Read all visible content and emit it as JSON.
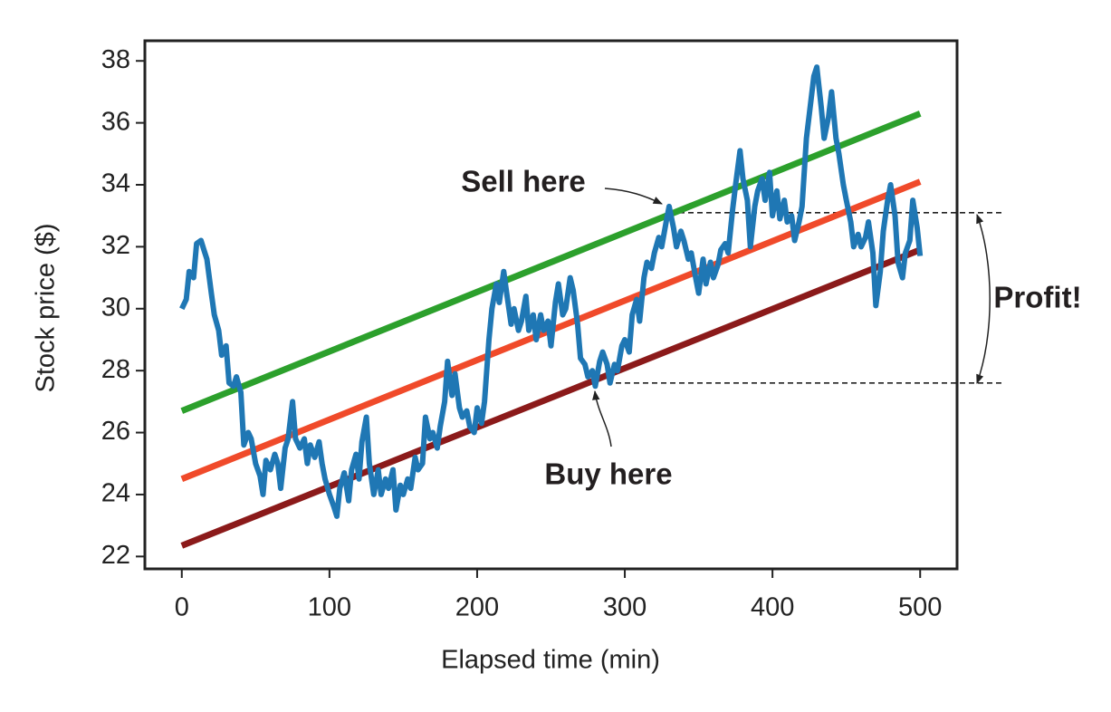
{
  "chart_data": {
    "type": "line",
    "xlabel": "Elapsed time (min)",
    "ylabel": "Stock price ($)",
    "xlim": [
      -25,
      525
    ],
    "ylim": [
      21.6,
      38.65
    ],
    "xticks": [
      0,
      100,
      200,
      300,
      400,
      500
    ],
    "yticks": [
      22,
      24,
      26,
      28,
      30,
      32,
      34,
      36,
      38
    ],
    "series": [
      {
        "color": "#1f77b4",
        "x": [
          0,
          3,
          5,
          8,
          10,
          13,
          15,
          17,
          20,
          22,
          25,
          27,
          30,
          32,
          35,
          37,
          40,
          42,
          45,
          47,
          50,
          53,
          55,
          57,
          60,
          63,
          65,
          67,
          70,
          72,
          75,
          77,
          80,
          83,
          85,
          87,
          90,
          93,
          95,
          97,
          100,
          103,
          105,
          107,
          110,
          113,
          115,
          118,
          120,
          122,
          125,
          127,
          130,
          133,
          135,
          138,
          140,
          143,
          145,
          148,
          150,
          153,
          155,
          158,
          160,
          163,
          165,
          168,
          170,
          173,
          175,
          178,
          180,
          183,
          185,
          188,
          190,
          193,
          195,
          198,
          200,
          203,
          205,
          208,
          210,
          213,
          215,
          218,
          220,
          223,
          225,
          228,
          230,
          233,
          235,
          238,
          240,
          243,
          245,
          248,
          250,
          253,
          255,
          258,
          260,
          263,
          265,
          268,
          270,
          273,
          275,
          278,
          280,
          283,
          285,
          288,
          290,
          293,
          295,
          298,
          300,
          303,
          305,
          308,
          310,
          313,
          315,
          318,
          320,
          323,
          325,
          328,
          330,
          333,
          335,
          338,
          340,
          343,
          345,
          348,
          350,
          353,
          355,
          358,
          360,
          363,
          365,
          368,
          370,
          373,
          375,
          378,
          380,
          383,
          385,
          388,
          390,
          393,
          395,
          398,
          400,
          403,
          405,
          408,
          410,
          413,
          415,
          418,
          420,
          423,
          425,
          428,
          430,
          433,
          435,
          438,
          440,
          443,
          445,
          448,
          450,
          453,
          455,
          458,
          460,
          463,
          465,
          468,
          470,
          473,
          475,
          478,
          480,
          483,
          485,
          488,
          490,
          493,
          495,
          498,
          500
        ],
        "values": [
          30.0,
          30.3,
          31.2,
          31.0,
          32.1,
          32.2,
          31.9,
          31.6,
          30.5,
          29.8,
          29.3,
          28.5,
          28.8,
          27.6,
          27.5,
          27.8,
          27.3,
          25.6,
          26.0,
          25.8,
          25.0,
          24.6,
          24.0,
          25.1,
          24.8,
          25.3,
          25.0,
          24.2,
          25.5,
          25.8,
          27.0,
          25.8,
          25.5,
          25.8,
          25.0,
          25.6,
          25.2,
          25.7,
          25.0,
          24.5,
          24.0,
          23.6,
          23.3,
          24.2,
          24.7,
          23.8,
          24.8,
          25.3,
          24.5,
          25.7,
          26.5,
          25.0,
          24.0,
          24.8,
          24.0,
          24.5,
          24.2,
          24.8,
          23.5,
          24.3,
          24.0,
          24.5,
          24.2,
          25.2,
          24.8,
          25.0,
          26.5,
          25.8,
          26.0,
          25.5,
          26.2,
          27.0,
          28.3,
          27.2,
          27.9,
          26.8,
          26.5,
          26.7,
          26.2,
          26.0,
          26.8,
          26.3,
          27.0,
          29.0,
          30.0,
          30.8,
          30.2,
          31.2,
          30.5,
          29.5,
          30.0,
          29.3,
          29.6,
          30.4,
          29.3,
          29.8,
          29.0,
          29.8,
          29.3,
          29.6,
          28.8,
          30.2,
          30.8,
          29.8,
          30.0,
          31.0,
          30.6,
          29.5,
          28.4,
          28.2,
          27.8,
          28.0,
          27.5,
          28.3,
          28.6,
          28.2,
          27.6,
          28.2,
          28.0,
          28.8,
          29.0,
          28.6,
          29.8,
          30.3,
          29.6,
          31.0,
          31.5,
          31.3,
          31.8,
          32.3,
          32.0,
          32.8,
          33.3,
          32.6,
          32.0,
          32.5,
          32.2,
          31.6,
          31.8,
          31.0,
          30.5,
          31.6,
          30.8,
          31.5,
          31.0,
          31.4,
          31.9,
          32.1,
          31.8,
          33.2,
          34.0,
          35.1,
          34.2,
          33.5,
          32.0,
          33.3,
          33.8,
          34.2,
          33.5,
          34.4,
          33.0,
          33.8,
          32.9,
          33.5,
          32.8,
          33.0,
          32.2,
          32.8,
          33.3,
          35.5,
          36.3,
          37.5,
          37.8,
          36.5,
          35.5,
          36.2,
          37.0,
          35.5,
          35.0,
          34.0,
          33.5,
          32.8,
          32.0,
          32.4,
          32.0,
          32.3,
          32.8,
          31.8,
          30.1,
          31.2,
          32.5,
          33.5,
          34.0,
          33.0,
          31.5,
          31.0,
          31.8,
          32.2,
          33.5,
          32.6,
          31.7
        ]
      },
      {
        "color": "#2ca02c",
        "x": [
          0,
          500
        ],
        "values": [
          26.7,
          36.3
        ]
      },
      {
        "color": "#f04a2a",
        "x": [
          0,
          500
        ],
        "values": [
          24.5,
          34.1
        ]
      },
      {
        "color": "#8b1a1a",
        "x": [
          0,
          500
        ],
        "values": [
          22.35,
          31.9
        ]
      }
    ],
    "hlines": [
      33.1,
      27.6
    ],
    "annotations": [
      "Sell here",
      "Buy here",
      "Profit!"
    ]
  }
}
